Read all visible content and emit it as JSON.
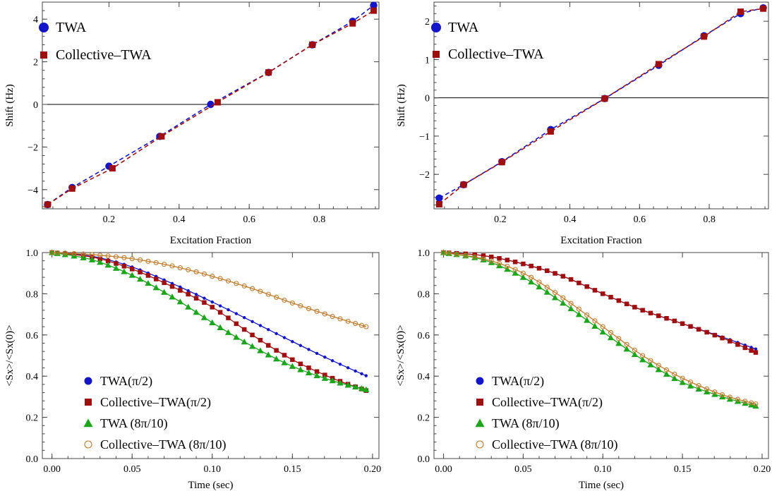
{
  "colors": {
    "twa": "#1414c8",
    "collective": "#a00f0f",
    "twa8": "#1aa51a",
    "collective8": "#c07a2a",
    "frame": "#444444",
    "zero_line": "#000000"
  },
  "chart_data": [
    {
      "type": "line",
      "panel": "top-left",
      "xlabel": "Excitation Fraction",
      "ylabel": "Shift (Hz)",
      "xlim": [
        0.01,
        0.97
      ],
      "ylim": [
        -4.9,
        4.8
      ],
      "xticks": [
        0.2,
        0.4,
        0.6,
        0.8
      ],
      "xtick_labels": [
        "0.2",
        "0.4",
        "0.6",
        "0.8"
      ],
      "yticks": [
        -4,
        -2,
        0,
        2,
        4
      ],
      "ytick_labels": [
        "−4",
        "−2",
        "0",
        "2",
        "4"
      ],
      "zero_line": true,
      "legend": "top-left",
      "series": [
        {
          "name": "TWA",
          "marker": "circle",
          "color_key": "twa",
          "line": "dashed",
          "x": [
            0.025,
            0.095,
            0.2,
            0.345,
            0.49,
            0.655,
            0.78,
            0.895,
            0.955
          ],
          "y": [
            -4.7,
            -3.9,
            -2.9,
            -1.5,
            0.0,
            1.5,
            2.8,
            3.9,
            4.65
          ]
        },
        {
          "name": "Collective–TWA",
          "marker": "square",
          "color_key": "collective",
          "line": "dashed",
          "x": [
            0.025,
            0.095,
            0.21,
            0.35,
            0.51,
            0.655,
            0.78,
            0.895,
            0.955
          ],
          "y": [
            -4.7,
            -3.95,
            -3.0,
            -1.5,
            0.1,
            1.5,
            2.8,
            3.8,
            4.4
          ]
        }
      ]
    },
    {
      "type": "line",
      "panel": "top-right",
      "xlabel": "Excitation Fraction",
      "ylabel": "Shift (Hz)",
      "xlim": [
        0.01,
        0.97
      ],
      "ylim": [
        -2.9,
        2.5
      ],
      "xticks": [
        0.2,
        0.4,
        0.6,
        0.8
      ],
      "xtick_labels": [
        "0.2",
        "0.4",
        "0.6",
        "0.8"
      ],
      "yticks": [
        -2,
        -1,
        0,
        1,
        2
      ],
      "ytick_labels": [
        "−2",
        "−1",
        "0",
        "1",
        "2"
      ],
      "zero_line": true,
      "legend": "top-left",
      "series": [
        {
          "name": "TWA",
          "marker": "circle",
          "color_key": "twa",
          "line": "dashed",
          "x": [
            0.025,
            0.095,
            0.205,
            0.345,
            0.5,
            0.655,
            0.785,
            0.89,
            0.955
          ],
          "y": [
            -2.62,
            -2.27,
            -1.67,
            -0.83,
            -0.02,
            0.85,
            1.62,
            2.2,
            2.35
          ]
        },
        {
          "name": "Collective–TWA",
          "marker": "square",
          "color_key": "collective",
          "line": "dashed",
          "x": [
            0.025,
            0.095,
            0.205,
            0.345,
            0.5,
            0.655,
            0.785,
            0.89,
            0.955
          ],
          "y": [
            -2.78,
            -2.27,
            -1.68,
            -0.88,
            -0.02,
            0.88,
            1.6,
            2.25,
            2.33
          ]
        }
      ]
    },
    {
      "type": "line",
      "panel": "bottom-left",
      "xlabel": "Time (sec)",
      "ylabel": "<Sx>/<Sx(0)>",
      "xlim": [
        -0.006,
        0.204
      ],
      "ylim": [
        0.0,
        1.0
      ],
      "xticks": [
        0.0,
        0.05,
        0.1,
        0.15,
        0.2
      ],
      "xtick_labels": [
        "0.00",
        "0.05",
        "0.10",
        "0.15",
        "0.20"
      ],
      "yticks": [
        0.0,
        0.2,
        0.4,
        0.6,
        0.8,
        1.0
      ],
      "ytick_labels": [
        "0.0",
        "0.2",
        "0.4",
        "0.6",
        "0.8",
        "1.0"
      ],
      "zero_line": false,
      "legend": "bottom-left",
      "series": [
        {
          "name": "TWA(π/2)",
          "marker": "circle-small",
          "color_key": "twa",
          "line": "solid",
          "x": [
            0,
            0.025,
            0.05,
            0.075,
            0.1,
            0.125,
            0.15,
            0.175,
            0.196
          ],
          "y": [
            1.0,
            0.982,
            0.93,
            0.85,
            0.76,
            0.665,
            0.568,
            0.475,
            0.402
          ]
        },
        {
          "name": "Collective–TWA(π/2)",
          "marker": "square",
          "color_key": "collective",
          "line": "solid",
          "x": [
            0,
            0.025,
            0.05,
            0.075,
            0.1,
            0.125,
            0.15,
            0.175,
            0.196
          ],
          "y": [
            1.0,
            0.978,
            0.92,
            0.835,
            0.735,
            0.6,
            0.48,
            0.39,
            0.33
          ]
        },
        {
          "name": "TWA (8π/10)",
          "marker": "triangle",
          "color_key": "twa8",
          "line": "solid",
          "x": [
            0,
            0.025,
            0.05,
            0.075,
            0.1,
            0.125,
            0.15,
            0.175,
            0.196
          ],
          "y": [
            1.0,
            0.965,
            0.89,
            0.785,
            0.66,
            0.545,
            0.448,
            0.378,
            0.335
          ]
        },
        {
          "name": "Collective–TWA (8π/10)",
          "marker": "open-circle",
          "color_key": "collective8",
          "line": "solid",
          "x": [
            0,
            0.025,
            0.05,
            0.075,
            0.1,
            0.125,
            0.15,
            0.175,
            0.196
          ],
          "y": [
            1.0,
            0.99,
            0.97,
            0.935,
            0.885,
            0.825,
            0.755,
            0.69,
            0.64
          ]
        }
      ]
    },
    {
      "type": "line",
      "panel": "bottom-right",
      "xlabel": "Time (sec)",
      "ylabel": "<Sx>/<Sx(0)>",
      "xlim": [
        -0.006,
        0.204
      ],
      "ylim": [
        0.0,
        1.0
      ],
      "xticks": [
        0.0,
        0.05,
        0.1,
        0.15,
        0.2
      ],
      "xtick_labels": [
        "0.00",
        "0.05",
        "0.10",
        "0.15",
        "0.20"
      ],
      "yticks": [
        0.0,
        0.2,
        0.4,
        0.6,
        0.8,
        1.0
      ],
      "ytick_labels": [
        "0.0",
        "0.2",
        "0.4",
        "0.6",
        "0.8",
        "1.0"
      ],
      "zero_line": false,
      "legend": "bottom-left",
      "series": [
        {
          "name": "TWA(π/2)",
          "marker": "circle-small",
          "color_key": "twa",
          "line": "solid",
          "x": [
            0,
            0.025,
            0.05,
            0.075,
            0.1,
            0.125,
            0.15,
            0.175,
            0.196
          ],
          "y": [
            1.0,
            0.985,
            0.945,
            0.885,
            0.8,
            0.72,
            0.655,
            0.59,
            0.532
          ]
        },
        {
          "name": "Collective–TWA(π/2)",
          "marker": "square",
          "color_key": "collective",
          "line": "solid",
          "x": [
            0,
            0.025,
            0.05,
            0.075,
            0.1,
            0.125,
            0.15,
            0.175,
            0.196
          ],
          "y": [
            1.0,
            0.985,
            0.945,
            0.885,
            0.8,
            0.72,
            0.655,
            0.585,
            0.515
          ]
        },
        {
          "name": "TWA (8π/10)",
          "marker": "triangle",
          "color_key": "twa8",
          "line": "solid",
          "x": [
            0,
            0.025,
            0.05,
            0.075,
            0.1,
            0.125,
            0.15,
            0.175,
            0.196
          ],
          "y": [
            1.0,
            0.965,
            0.88,
            0.755,
            0.615,
            0.48,
            0.37,
            0.3,
            0.255
          ]
        },
        {
          "name": "Collective–TWA (8π/10)",
          "marker": "open-circle",
          "color_key": "collective8",
          "line": "solid",
          "x": [
            0,
            0.025,
            0.05,
            0.075,
            0.1,
            0.125,
            0.15,
            0.175,
            0.196
          ],
          "y": [
            1.0,
            0.97,
            0.9,
            0.78,
            0.64,
            0.5,
            0.39,
            0.31,
            0.265
          ]
        }
      ]
    }
  ]
}
